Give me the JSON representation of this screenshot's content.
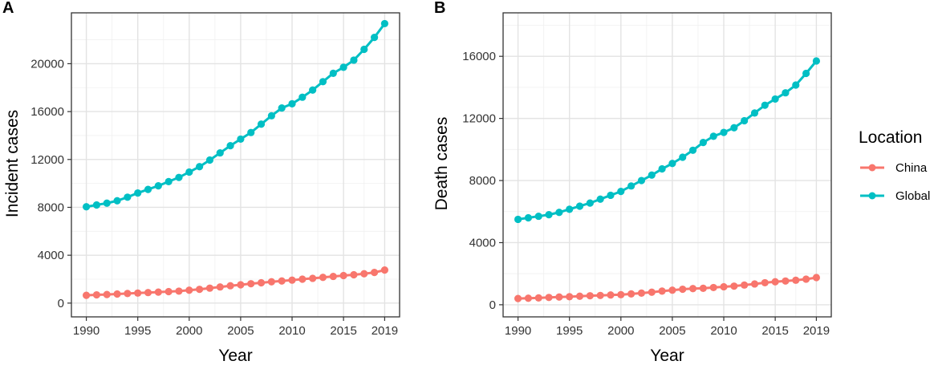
{
  "chart_data": [
    {
      "type": "line",
      "panel_label": "A",
      "title": "",
      "xlabel": "Year",
      "ylabel": "Incident cases",
      "x": [
        1990,
        1991,
        1992,
        1993,
        1994,
        1995,
        1996,
        1997,
        1998,
        1999,
        2000,
        2001,
        2002,
        2003,
        2004,
        2005,
        2006,
        2007,
        2008,
        2009,
        2010,
        2011,
        2012,
        2013,
        2014,
        2015,
        2016,
        2017,
        2018,
        2019
      ],
      "xticks": [
        "1990",
        "1995",
        "2000",
        "2005",
        "2010",
        "2015",
        "2019"
      ],
      "yticks": [
        "0",
        "4000",
        "8000",
        "12000",
        "16000",
        "20000"
      ],
      "xlim": [
        1988.55,
        2020.45
      ],
      "ylim": [
        -1150,
        24250
      ],
      "grid": true,
      "series": [
        {
          "name": "China",
          "color": "#F8766D",
          "values": [
            650,
            690,
            720,
            760,
            800,
            840,
            880,
            920,
            960,
            1000,
            1080,
            1150,
            1250,
            1350,
            1450,
            1530,
            1620,
            1700,
            1780,
            1850,
            1920,
            2000,
            2070,
            2150,
            2230,
            2300,
            2370,
            2450,
            2560,
            2760
          ]
        },
        {
          "name": "Global",
          "color": "#00BFC4",
          "values": [
            8050,
            8200,
            8350,
            8550,
            8850,
            9200,
            9500,
            9800,
            10150,
            10500,
            10950,
            11400,
            11950,
            12550,
            13150,
            13700,
            14250,
            14950,
            15650,
            16300,
            16650,
            17200,
            17800,
            18500,
            19200,
            19700,
            20300,
            21200,
            22200,
            23350
          ]
        }
      ]
    },
    {
      "type": "line",
      "panel_label": "B",
      "title": "",
      "xlabel": "Year",
      "ylabel": "Death cases",
      "x": [
        1990,
        1991,
        1992,
        1993,
        1994,
        1995,
        1996,
        1997,
        1998,
        1999,
        2000,
        2001,
        2002,
        2003,
        2004,
        2005,
        2006,
        2007,
        2008,
        2009,
        2010,
        2011,
        2012,
        2013,
        2014,
        2015,
        2016,
        2017,
        2018,
        2019
      ],
      "xticks": [
        "1990",
        "1995",
        "2000",
        "2005",
        "2010",
        "2015",
        "2019"
      ],
      "yticks": [
        "0",
        "4000",
        "8000",
        "12000",
        "16000"
      ],
      "xlim": [
        1988.55,
        2020.45
      ],
      "ylim": [
        -780,
        18800
      ],
      "grid": true,
      "series": [
        {
          "name": "China",
          "color": "#F8766D",
          "values": [
            400,
            420,
            440,
            470,
            500,
            520,
            550,
            580,
            600,
            630,
            650,
            700,
            750,
            810,
            880,
            940,
            1000,
            1040,
            1060,
            1110,
            1160,
            1200,
            1270,
            1340,
            1420,
            1480,
            1530,
            1580,
            1650,
            1750
          ]
        },
        {
          "name": "Global",
          "color": "#00BFC4",
          "values": [
            5500,
            5600,
            5700,
            5800,
            5950,
            6150,
            6350,
            6550,
            6800,
            7050,
            7300,
            7650,
            8000,
            8350,
            8750,
            9100,
            9500,
            9950,
            10450,
            10850,
            11100,
            11400,
            11850,
            12350,
            12850,
            13250,
            13650,
            14150,
            14900,
            15700
          ]
        }
      ]
    }
  ],
  "legend": {
    "title": "Location",
    "items": [
      {
        "label": "China",
        "color": "#F8766D"
      },
      {
        "label": "Global",
        "color": "#00BFC4"
      }
    ]
  }
}
